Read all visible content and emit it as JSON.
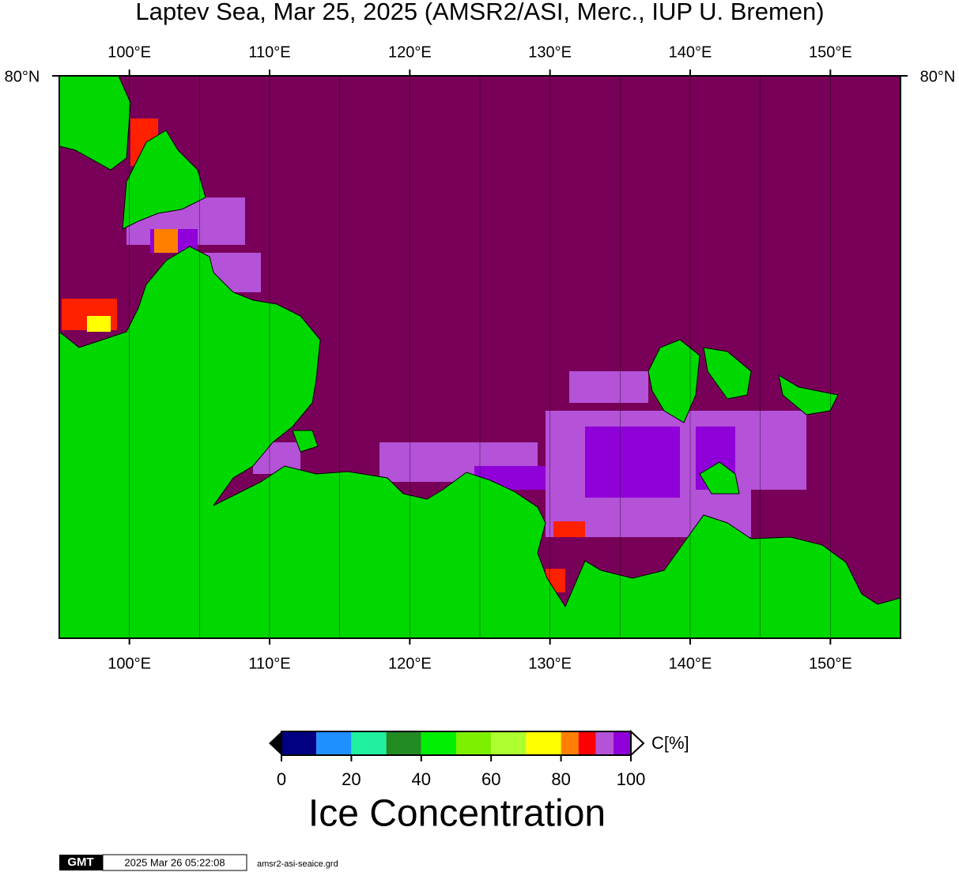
{
  "map": {
    "title": "Laptev Sea, Mar 25, 2025 (AMSR2/ASI, Merc., IUP U. Bremen)",
    "lon_range": [
      95,
      155
    ],
    "lon_ticks": [
      {
        "value": 100,
        "label": "100°E"
      },
      {
        "value": 110,
        "label": "110°E"
      },
      {
        "value": 120,
        "label": "120°E"
      },
      {
        "value": 130,
        "label": "130°E"
      },
      {
        "value": 140,
        "label": "140°E"
      },
      {
        "value": 150,
        "label": "150°E"
      }
    ],
    "grid_lons": [
      100,
      105,
      110,
      115,
      120,
      125,
      130,
      135,
      140,
      145,
      150
    ],
    "lat_label": "80°N",
    "colorbar": {
      "bounds": [
        0,
        10,
        20,
        30,
        40,
        50,
        60,
        70,
        80,
        85,
        90,
        95,
        100
      ],
      "colors": [
        "#000080",
        "#1e90ff",
        "#20f0a0",
        "#228b22",
        "#00ee00",
        "#7cf000",
        "#adff2f",
        "#ffff00",
        "#ff8000",
        "#ff0000",
        "#b452d8",
        "#9000d8"
      ],
      "ticks": [
        0,
        20,
        40,
        60,
        80,
        100
      ],
      "unit": "C[%]",
      "title": "Ice Concentration"
    },
    "footer": {
      "logo": "GMT",
      "timestamp": "2025 Mar 26 05:22:08",
      "file": "amsr2-asi-seaice.grd"
    }
  }
}
